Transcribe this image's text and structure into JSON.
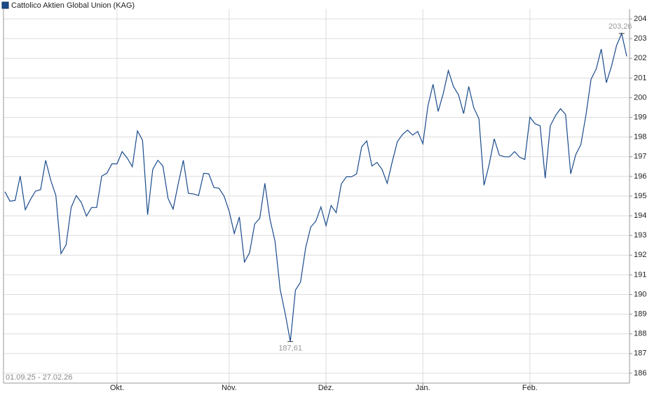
{
  "chart_data": {
    "type": "line",
    "series": [
      {
        "name": "Cattolico Aktien Global Union (KAG)",
        "color": "#1a4b8c",
        "values": [
          195.22,
          194.74,
          194.78,
          196.02,
          194.31,
          194.82,
          195.25,
          195.33,
          196.82,
          195.8,
          195.03,
          192.08,
          192.52,
          194.42,
          195.03,
          194.67,
          193.98,
          194.42,
          194.42,
          196.02,
          196.16,
          196.64,
          196.64,
          197.26,
          196.93,
          196.49,
          198.31,
          197.84,
          194.05,
          196.35,
          196.82,
          196.53,
          194.89,
          194.34,
          195.62,
          196.82,
          195.14,
          195.11,
          195.03,
          196.16,
          196.13,
          195.44,
          195.4,
          195.0,
          194.23,
          193.1,
          193.94,
          191.65,
          192.12,
          193.58,
          193.87,
          195.65,
          193.83,
          192.7,
          190.26,
          189.02,
          187.61,
          190.22,
          190.63,
          192.37,
          193.43,
          193.72,
          194.45,
          193.5,
          194.52,
          194.16,
          195.62,
          195.98,
          195.98,
          196.13,
          197.51,
          197.8,
          196.53,
          196.71,
          196.35,
          195.65,
          196.75,
          197.77,
          198.13,
          198.35,
          198.1,
          198.28,
          197.66,
          199.59,
          200.68,
          199.3,
          200.21,
          201.38,
          200.57,
          200.14,
          199.19,
          200.57,
          199.48,
          198.93,
          195.55,
          196.6,
          197.91,
          197.08,
          197.0,
          197.0,
          197.26,
          196.97,
          196.86,
          199.01,
          198.68,
          198.57,
          195.91,
          198.57,
          199.08,
          199.44,
          199.15,
          196.13,
          197.11,
          197.62,
          199.12,
          200.94,
          201.45,
          202.47,
          200.76,
          201.59,
          202.65,
          203.26,
          202.1
        ]
      }
    ],
    "xlim": [
      0,
      122
    ],
    "xticks": [
      {
        "value": 22,
        "label": "Okt."
      },
      {
        "value": 44,
        "label": "Nov."
      },
      {
        "value": 63,
        "label": "Dez."
      },
      {
        "value": 82,
        "label": "Jan."
      },
      {
        "value": 103,
        "label": "Feb."
      }
    ],
    "ylim": [
      185.5,
      204.5
    ],
    "yticks": [
      186,
      187,
      188,
      189,
      190,
      191,
      192,
      193,
      194,
      195,
      196,
      197,
      198,
      199,
      200,
      201,
      202,
      203,
      204
    ],
    "grid": true,
    "date_range": "01.09.25 - 27.02.26",
    "max_label": {
      "value": 203.26,
      "label": "203,26"
    },
    "min_label": {
      "value": 187.61,
      "label": "187,61"
    }
  }
}
